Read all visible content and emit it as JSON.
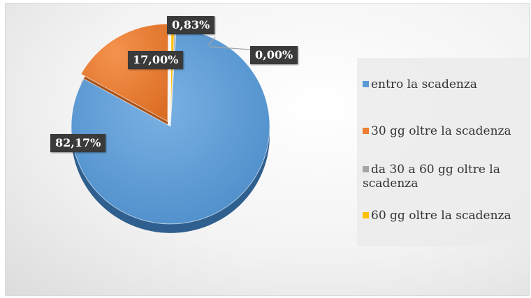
{
  "chart_data": {
    "type": "pie",
    "slices": [
      {
        "label": "entro la scadenza",
        "value": 82.17,
        "display": "82,17%",
        "color": "#5b9bd5"
      },
      {
        "label": "30 gg oltre la scadenza",
        "value": 17.0,
        "display": "17,00%",
        "color": "#ed7d31"
      },
      {
        "label": "da 30 a 60 gg oltre la scadenza",
        "value": 0.83,
        "display": "0,83%",
        "color": "#a5a5a5"
      },
      {
        "label": "60 gg oltre la scadenza",
        "value": 0.0,
        "display": "0,00%",
        "color": "#ffc000"
      }
    ],
    "legend_position": "right",
    "exploded_slices": [
      "30 gg oltre la scadenza",
      "da 30 a 60 gg oltre la scadenza"
    ],
    "style": "3d"
  }
}
